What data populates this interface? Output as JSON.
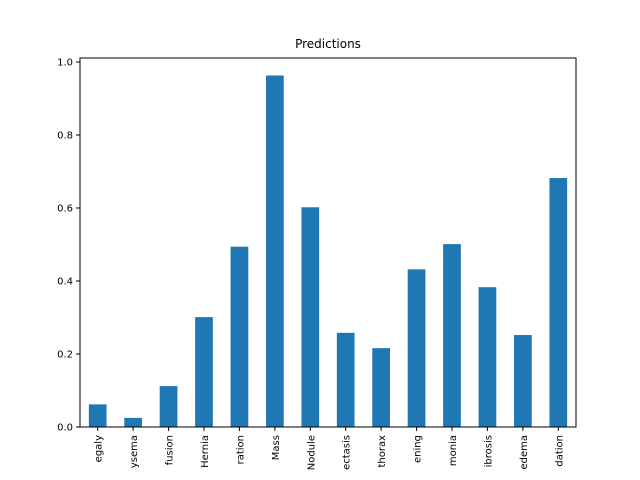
{
  "chart_data": {
    "type": "bar",
    "title": "Predictions",
    "xlabel": "",
    "ylabel": "",
    "ylim": [
      0,
      1.0
    ],
    "yticks": [
      "0.0",
      "0.2",
      "0.4",
      "0.6",
      "0.8",
      "1.0"
    ],
    "categories": [
      "egaly",
      "ysema",
      "fusion",
      "Hernia",
      "ration",
      "Mass",
      "Nodule",
      "ectasis",
      "thorax",
      "ening",
      "monia",
      "ibrosis",
      "edema",
      "dation"
    ],
    "values": [
      0.062,
      0.025,
      0.112,
      0.301,
      0.494,
      0.963,
      0.602,
      0.258,
      0.216,
      0.432,
      0.501,
      0.383,
      0.252,
      0.682
    ],
    "grid": false,
    "bar_color": "#1f77b4"
  }
}
